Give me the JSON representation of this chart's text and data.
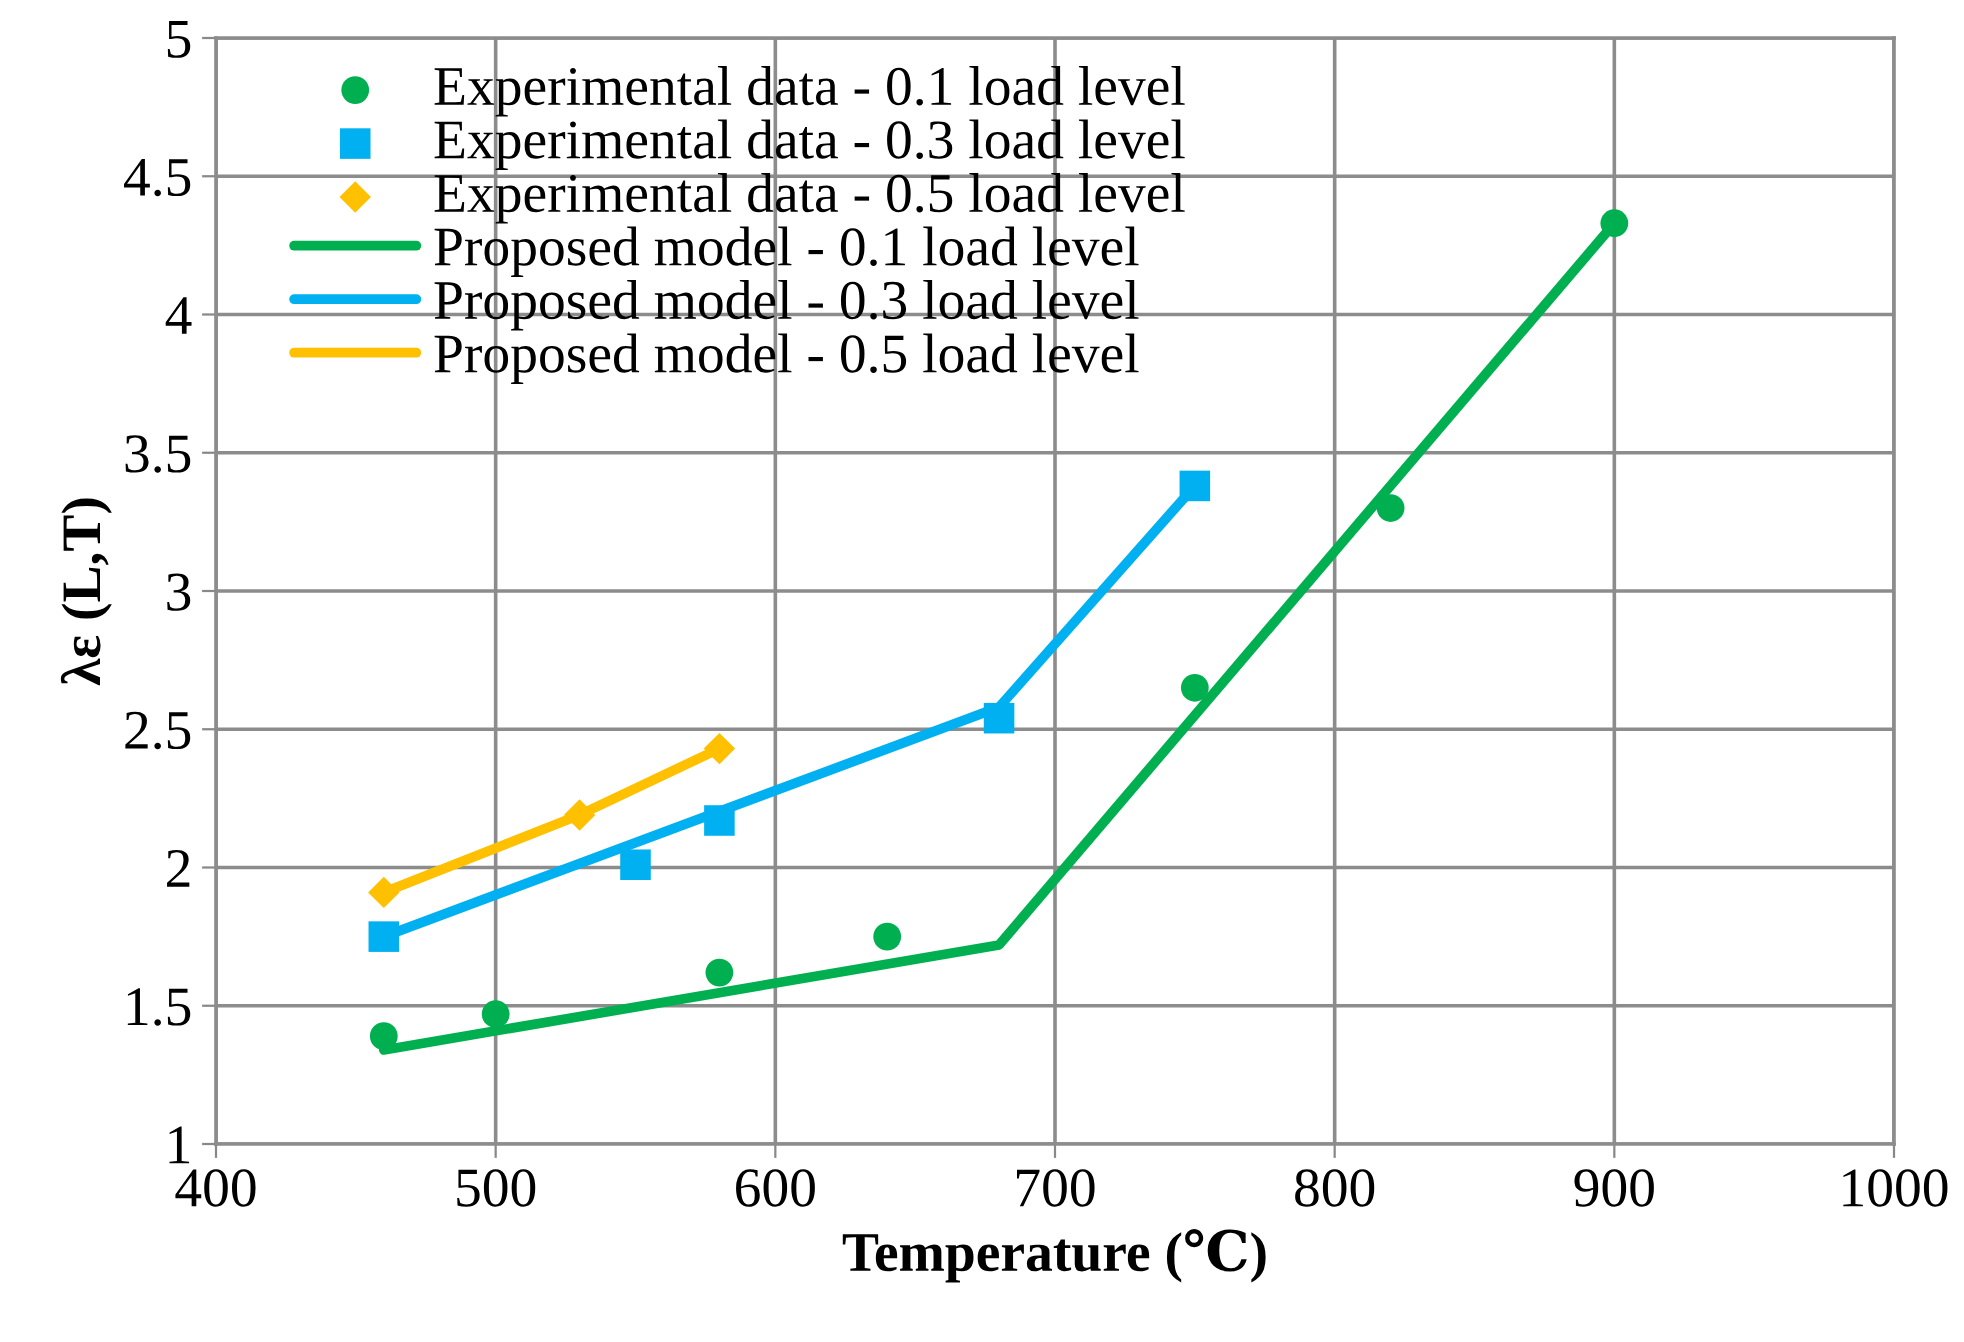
{
  "chart_data": {
    "type": "scatter",
    "xlabel": "Temperature (℃)",
    "ylabel": "λε (L,T)",
    "xlim": [
      400,
      1000
    ],
    "xticks": [
      400,
      500,
      600,
      700,
      800,
      900,
      1000
    ],
    "ylim": [
      1,
      5
    ],
    "yticks": [
      1,
      1.5,
      2,
      2.5,
      3,
      3.5,
      4,
      4.5,
      5
    ],
    "grid": true,
    "legend": "top left",
    "series": [
      {
        "name": "Experimental data - 0.1 load level",
        "marker": "circle",
        "color": "#00b050",
        "x": [
          460,
          500,
          580,
          640,
          750,
          820,
          900
        ],
        "values": [
          1.39,
          1.47,
          1.62,
          1.75,
          2.65,
          3.3,
          4.33
        ]
      },
      {
        "name": "Experimental data - 0.3 load level",
        "marker": "square",
        "color": "#00b0f0",
        "x": [
          460,
          550,
          580,
          680,
          750
        ],
        "values": [
          1.75,
          2.01,
          2.17,
          2.54,
          3.38
        ]
      },
      {
        "name": "Experimental data - 0.5 load level",
        "marker": "diamond",
        "color": "#ffc000",
        "x": [
          460,
          530,
          580
        ],
        "values": [
          1.91,
          2.19,
          2.43
        ]
      },
      {
        "name": "Proposed model - 0.1 load level",
        "type": "line",
        "marker": "none",
        "line_style": "solid",
        "color": "#00b050",
        "x": [
          460,
          680,
          900
        ],
        "values": [
          1.34,
          1.72,
          4.33
        ]
      },
      {
        "name": "Proposed model - 0.3 load level",
        "type": "line",
        "marker": "none",
        "line_style": "solid",
        "color": "#00b0f0",
        "x": [
          460,
          680,
          750
        ],
        "values": [
          1.75,
          2.58,
          3.38
        ]
      },
      {
        "name": "Proposed model - 0.5 load level",
        "type": "line",
        "marker": "none",
        "line_style": "solid",
        "color": "#ffc000",
        "x": [
          460,
          530,
          580
        ],
        "values": [
          1.91,
          2.19,
          2.43
        ]
      }
    ]
  }
}
